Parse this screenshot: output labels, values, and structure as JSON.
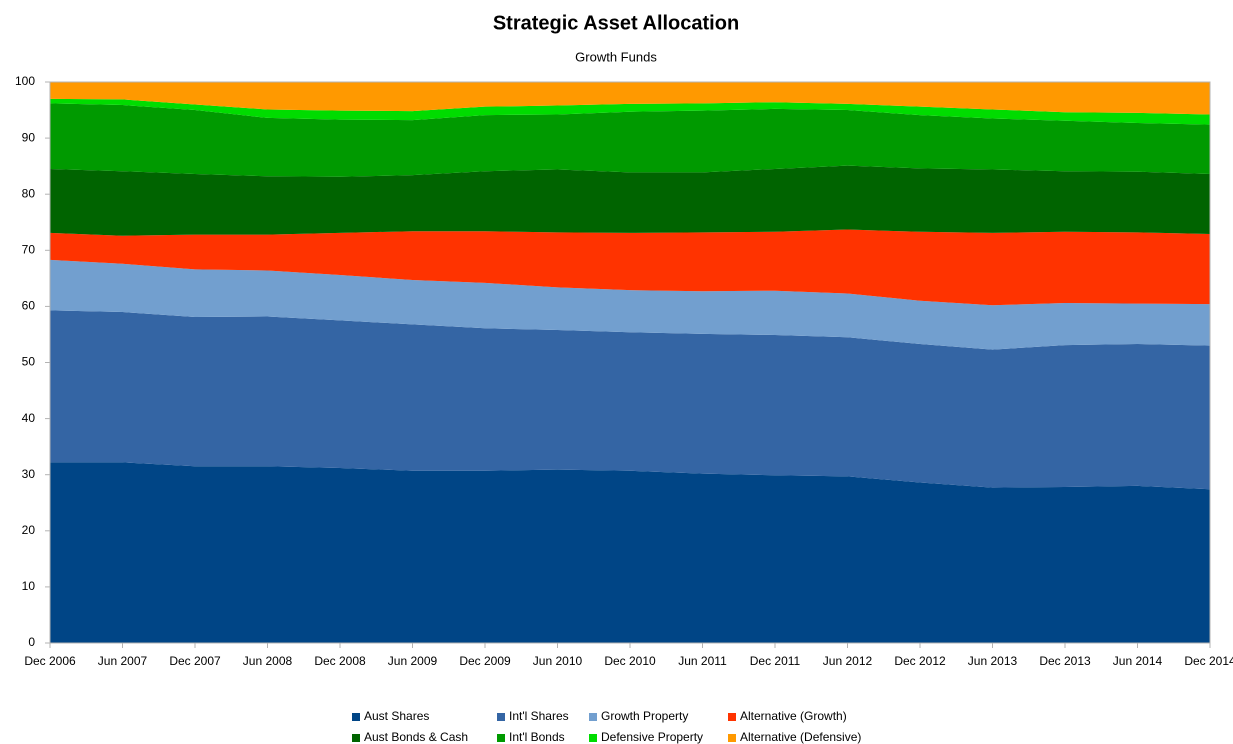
{
  "chart_data": {
    "type": "area",
    "stacked": true,
    "title": "Strategic Asset Allocation",
    "subtitle": "Growth Funds",
    "categories": [
      "Dec 2006",
      "Jun 2007",
      "Dec 2007",
      "Jun 2008",
      "Dec 2008",
      "Jun 2009",
      "Dec 2009",
      "Jun 2010",
      "Dec 2010",
      "Jun 2011",
      "Dec 2011",
      "Jun 2012",
      "Dec 2012",
      "Jun 2013",
      "Dec 2013",
      "Jun 2014",
      "Dec 2014"
    ],
    "series": [
      {
        "name": "Aust Shares",
        "color": "#004586",
        "values": [
          32.2,
          32.2,
          31.5,
          31.5,
          31.2,
          30.7,
          30.7,
          30.9,
          30.7,
          30.2,
          29.9,
          29.7,
          28.6,
          27.7,
          27.8,
          28.0,
          27.4
        ]
      },
      {
        "name": "Int'l Shares",
        "color": "#3465a4",
        "values": [
          27.1,
          26.8,
          26.6,
          26.7,
          26.3,
          26.1,
          25.4,
          24.9,
          24.7,
          24.9,
          25.0,
          24.8,
          24.7,
          24.6,
          25.3,
          25.3,
          25.6
        ]
      },
      {
        "name": "Growth Property",
        "color": "#729fcf",
        "values": [
          9.0,
          8.6,
          8.5,
          8.2,
          8.1,
          7.9,
          8.1,
          7.6,
          7.5,
          7.6,
          7.9,
          7.8,
          7.7,
          7.9,
          7.5,
          7.2,
          7.4
        ]
      },
      {
        "name": "Alternative (Growth)",
        "color": "#ff3300",
        "values": [
          4.8,
          5.0,
          6.2,
          6.4,
          7.5,
          8.7,
          9.2,
          9.8,
          10.2,
          10.5,
          10.5,
          11.4,
          12.3,
          12.9,
          12.7,
          12.7,
          12.5
        ]
      },
      {
        "name": "Aust Bonds & Cash",
        "color": "#006400",
        "values": [
          11.4,
          11.5,
          10.8,
          10.4,
          10.0,
          10.0,
          10.7,
          11.2,
          10.8,
          10.7,
          11.2,
          11.4,
          11.3,
          11.3,
          10.8,
          10.8,
          10.7
        ]
      },
      {
        "name": "Int'l Bonds",
        "color": "#009a00",
        "values": [
          11.7,
          11.8,
          11.4,
          10.4,
          10.2,
          9.8,
          10.0,
          9.8,
          10.8,
          11.0,
          10.7,
          9.9,
          9.5,
          9.1,
          9.0,
          8.7,
          8.8
        ]
      },
      {
        "name": "Defensive Property",
        "color": "#00dc00",
        "values": [
          0.8,
          1.0,
          1.0,
          1.5,
          1.6,
          1.6,
          1.5,
          1.6,
          1.4,
          1.3,
          1.2,
          1.1,
          1.5,
          1.6,
          1.5,
          1.8,
          1.8
        ]
      },
      {
        "name": "Alternative (Defensive)",
        "color": "#ff9900",
        "values": [
          3.0,
          3.1,
          4.0,
          4.9,
          5.1,
          5.2,
          4.4,
          4.2,
          3.9,
          3.8,
          3.6,
          3.9,
          4.4,
          4.9,
          5.4,
          5.5,
          5.8
        ]
      }
    ],
    "ylim": [
      0,
      100
    ],
    "yticks": [
      0,
      10,
      20,
      30,
      40,
      50,
      60,
      70,
      80,
      90,
      100
    ],
    "legend": "bottom"
  }
}
